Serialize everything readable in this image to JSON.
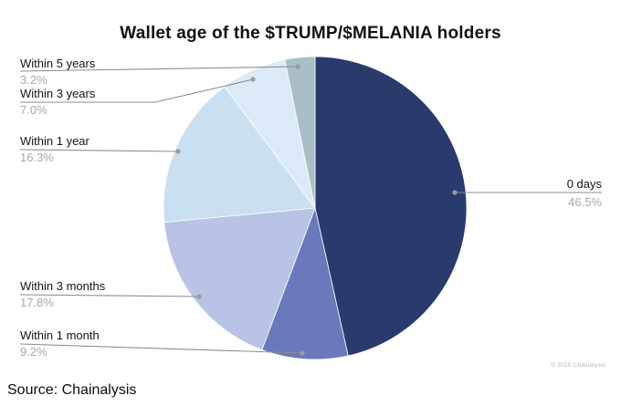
{
  "page": {
    "title": "Wallet age of the $TRUMP/$MELANIA holders",
    "source": "Source: Chainalysis",
    "copyright": "© 2025 Chainalysis"
  },
  "colors": {
    "slice_0_days": "#2B3A6D",
    "slice_within_1_month": "#6A79BC",
    "slice_within_3_months": "#B9C3E5",
    "slice_within_1_year": "#CAE0F0",
    "slice_within_3_years": "#DBEAF6",
    "slice_within_5_years": "#A9BEC7",
    "leader_line": "#8C8C8C",
    "leader_dot": "#9B9B9B",
    "label_text": "#141414",
    "percent_text": "#A8A8A8"
  },
  "chart_data": {
    "type": "pie",
    "title": "Wallet age of the $TRUMP/$MELANIA holders",
    "unit": "%",
    "start_angle_deg": 0,
    "direction": "clockwise",
    "legend": "callout-labels",
    "categories": [
      "0 days",
      "Within 1 month",
      "Within 3 months",
      "Within 1 year",
      "Within 3 years",
      "Within 5 years"
    ],
    "values": [
      46.5,
      9.2,
      17.8,
      16.3,
      7.0,
      3.2
    ],
    "value_labels": [
      "46.5%",
      "9.2%",
      "17.8%",
      "16.3%",
      "7.0%",
      "3.2%"
    ],
    "colors": [
      "#2B3A6D",
      "#6A79BC",
      "#B9C3E5",
      "#CAE0F0",
      "#DBEAF6",
      "#A9BEC7"
    ],
    "source": "Chainalysis"
  }
}
